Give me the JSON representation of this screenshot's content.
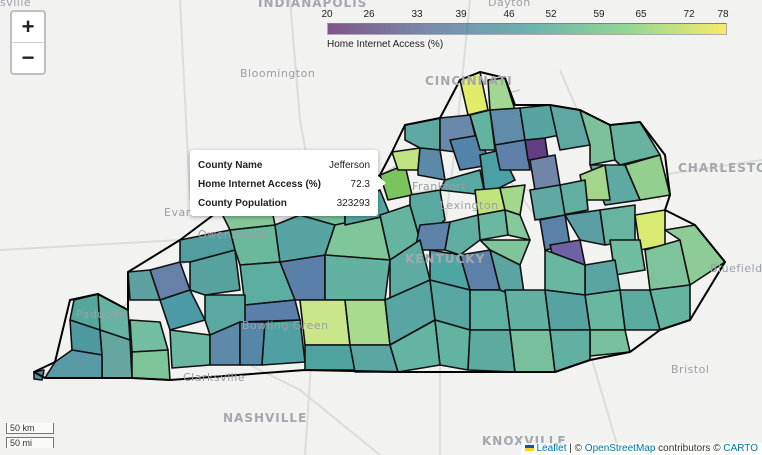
{
  "zoom": {
    "in_label": "+",
    "out_label": "−"
  },
  "cities": [
    {
      "name": "INDIANAPOLIS",
      "big": true
    },
    {
      "name": "Dayton",
      "big": false
    },
    {
      "name": "Bloomington",
      "big": false
    },
    {
      "name": "CINCINNATI",
      "big": true
    },
    {
      "name": "CHARLESTON",
      "big": true
    },
    {
      "name": "Evansville",
      "big": false
    },
    {
      "name": "Owensboro",
      "big": false
    },
    {
      "name": "Frankfort",
      "big": false
    },
    {
      "name": "Lexington",
      "big": false
    },
    {
      "name": "KENTUCKY",
      "big": true
    },
    {
      "name": "Paducah",
      "big": false
    },
    {
      "name": "Bowling Green",
      "big": false
    },
    {
      "name": "Clarksville",
      "big": false
    },
    {
      "name": "NASHVILLE",
      "big": true
    },
    {
      "name": "KNOXVILLE",
      "big": true
    },
    {
      "name": "Bristol",
      "big": false
    },
    {
      "name": "Bluefield",
      "big": false
    },
    {
      "name": "sville",
      "big": false
    }
  ],
  "legend": {
    "ticks": [
      "20",
      "26",
      "33",
      "39",
      "46",
      "52",
      "59",
      "65",
      "72",
      "78"
    ],
    "title": "Home Internet Access (%)",
    "colors": {
      "low": "#440154",
      "mid": "#21918c",
      "high": "#fde725"
    }
  },
  "tooltip": {
    "county_label": "County Name",
    "county_value": "Jefferson",
    "access_label": "Home Internet Access (%)",
    "access_value": "72.3",
    "pop_label": "County Population",
    "pop_value": "323293"
  },
  "scale": {
    "metric": "50 km",
    "imperial": "50 mi"
  },
  "attribution": {
    "leaflet": "Leaflet",
    "sep": " | © ",
    "osm": "OpenStreetMap",
    "contrib": " contributors © ",
    "carto": "CARTO"
  }
}
